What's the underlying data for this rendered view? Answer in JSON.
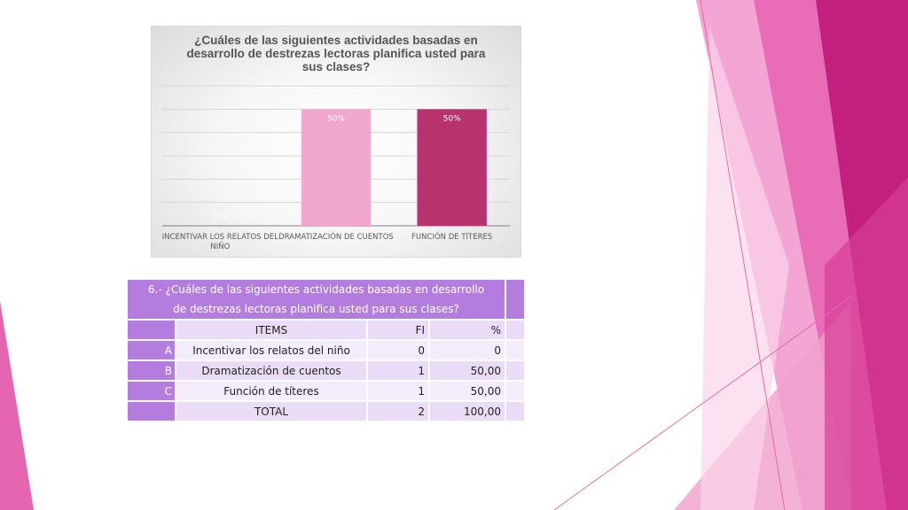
{
  "chart_data": {
    "type": "bar",
    "title": "¿Cuáles de las siguientes actividades basadas en desarrollo de destrezas lectoras planifica usted para sus clases?",
    "title_lines": [
      "¿Cuáles de las siguientes actividades basadas en",
      "desarrollo de destrezas lectoras planifica usted para",
      "sus clases?"
    ],
    "categories": [
      "INCENTIVAR LOS RELATOS DEL NIÑO",
      "DRAMATIZACIÓN DE CUENTOS",
      "FUNCIÓN DE TÍTERES"
    ],
    "category_label_lines": [
      [
        "INCENTIVAR LOS RELATOS DEL",
        "NIÑO"
      ],
      [
        "DRAMATIZACIÓN DE CUENTOS"
      ],
      [
        "FUNCIÓN DE TÍTERES"
      ]
    ],
    "values": [
      0,
      50,
      50
    ],
    "data_labels": [
      "0%",
      "50%",
      "50%"
    ],
    "bar_colors": [
      "#f2a7d0",
      "#f2a7d0",
      "#b8326f"
    ],
    "ylim": [
      0,
      60
    ],
    "grid": true,
    "xlabel": "",
    "ylabel": ""
  },
  "table": {
    "question_line1": "6.- ¿Cuáles de las siguientes actividades basadas en desarrollo",
    "question_line2": "de destrezas lectoras planifica usted para sus clases?",
    "headers": [
      "ITEMS",
      "FI",
      "%"
    ],
    "rows": [
      {
        "letter": "A",
        "item": "Incentivar los relatos del niño",
        "fi": "0",
        "pct": "0"
      },
      {
        "letter": "B",
        "item": "Dramatización de cuentos",
        "fi": "1",
        "pct": "50,00"
      },
      {
        "letter": "C",
        "item": "Función de títeres",
        "fi": "1",
        "pct": "50,00"
      }
    ],
    "total_label": "TOTAL",
    "total_fi": "2",
    "total_pct": "100,00"
  },
  "theme": {
    "accent_pink": "#e0369a",
    "accent_magenta": "#c0267f",
    "table_header": "#b57ce0"
  }
}
